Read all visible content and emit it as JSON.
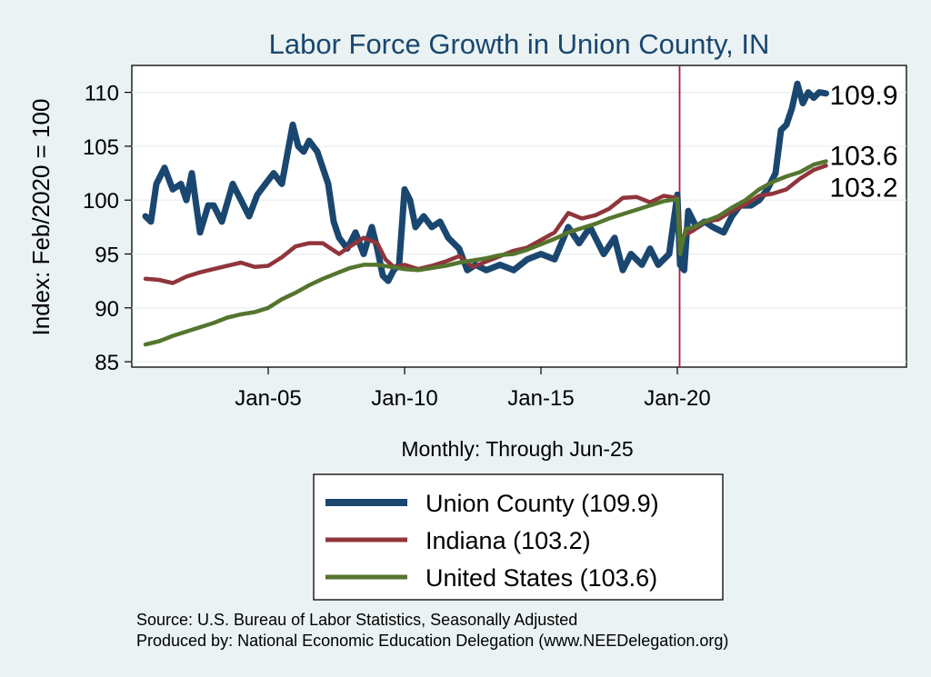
{
  "chart_data": {
    "type": "line",
    "title": "Labor Force Growth in Union  County, IN",
    "ylabel": "Index: Feb/2020 = 100",
    "xlabel": "Monthly: Through Jun-25",
    "ylim": [
      84.5,
      112.5
    ],
    "xlim": [
      2000.0,
      2028.4
    ],
    "yticks": [
      85,
      90,
      95,
      100,
      105,
      110
    ],
    "xticks": [
      {
        "label": "Jan-05",
        "value": 2005
      },
      {
        "label": "Jan-10",
        "value": 2010
      },
      {
        "label": "Jan-15",
        "value": 2015
      },
      {
        "label": "Jan-20",
        "value": 2020
      }
    ],
    "reference_line": 2020.083,
    "grid": "horizontal",
    "legend_position": "below",
    "series": [
      {
        "name": "Union  County",
        "legend": "Union  County (109.9)",
        "end_label": "109.9",
        "color": "#1a476f",
        "x": [
          2000.5,
          2000.7,
          2000.9,
          2001.2,
          2001.5,
          2001.8,
          2002.0,
          2002.2,
          2002.5,
          2002.8,
          2003.0,
          2003.3,
          2003.7,
          2004.0,
          2004.3,
          2004.6,
          2004.9,
          2005.2,
          2005.5,
          2005.9,
          2006.1,
          2006.3,
          2006.5,
          2006.8,
          2007.0,
          2007.2,
          2007.4,
          2007.6,
          2007.9,
          2008.2,
          2008.5,
          2008.8,
          2009.0,
          2009.2,
          2009.4,
          2009.6,
          2009.8,
          2010.0,
          2010.2,
          2010.4,
          2010.7,
          2011.0,
          2011.3,
          2011.6,
          2012.0,
          2012.3,
          2012.6,
          2013.0,
          2013.5,
          2014.0,
          2014.5,
          2015.0,
          2015.5,
          2016.0,
          2016.4,
          2016.8,
          2017.3,
          2017.7,
          2018.0,
          2018.3,
          2018.7,
          2019.0,
          2019.3,
          2019.7,
          2020.0,
          2020.1,
          2020.25,
          2020.4,
          2020.7,
          2021.0,
          2021.3,
          2021.7,
          2022.0,
          2022.3,
          2022.7,
          2023.0,
          2023.3,
          2023.6,
          2023.8,
          2024.0,
          2024.2,
          2024.4,
          2024.6,
          2024.8,
          2025.0,
          2025.2,
          2025.45
        ],
        "values": [
          98.5,
          98.0,
          101.5,
          103.0,
          101.0,
          101.5,
          100.0,
          102.5,
          97.0,
          99.5,
          99.5,
          98.0,
          101.5,
          100.0,
          98.5,
          100.5,
          101.5,
          102.5,
          101.5,
          107.0,
          105.0,
          104.5,
          105.5,
          104.5,
          103.0,
          101.5,
          98.0,
          96.5,
          95.5,
          97.0,
          95.0,
          97.5,
          95.5,
          93.0,
          92.5,
          93.5,
          94.0,
          101.0,
          100.0,
          97.5,
          98.5,
          97.5,
          98.0,
          96.5,
          95.5,
          93.5,
          94.0,
          93.5,
          94.0,
          93.5,
          94.5,
          95.0,
          94.5,
          97.5,
          96.0,
          97.5,
          95.0,
          96.5,
          93.5,
          95.0,
          94.0,
          95.5,
          94.0,
          95.0,
          100.5,
          94.0,
          93.5,
          99.0,
          97.5,
          98.0,
          97.5,
          97.0,
          98.5,
          99.5,
          99.5,
          100.0,
          101.0,
          102.5,
          106.5,
          107.0,
          108.5,
          110.8,
          109.0,
          110.0,
          109.5,
          110.0,
          109.9
        ]
      },
      {
        "name": "Indiana",
        "legend": "Indiana (103.2)",
        "end_label": "103.2",
        "color": "#90353b",
        "x": [
          2000.5,
          2001.0,
          2001.5,
          2002.0,
          2002.5,
          2003.0,
          2003.5,
          2004.0,
          2004.5,
          2005.0,
          2005.5,
          2006.0,
          2006.5,
          2007.0,
          2007.3,
          2007.6,
          2008.0,
          2008.5,
          2009.0,
          2009.3,
          2009.6,
          2010.0,
          2010.5,
          2011.0,
          2011.5,
          2012.0,
          2012.5,
          2013.0,
          2013.5,
          2014.0,
          2014.5,
          2015.0,
          2015.5,
          2016.0,
          2016.5,
          2017.0,
          2017.5,
          2018.0,
          2018.5,
          2019.0,
          2019.5,
          2020.0,
          2020.1,
          2020.3,
          2020.6,
          2021.0,
          2021.5,
          2022.0,
          2022.5,
          2023.0,
          2023.5,
          2024.0,
          2024.5,
          2025.0,
          2025.45
        ],
        "values": [
          92.7,
          92.6,
          92.3,
          92.9,
          93.3,
          93.6,
          93.9,
          94.2,
          93.8,
          93.9,
          94.7,
          95.7,
          96.0,
          96.0,
          95.5,
          95.0,
          95.7,
          96.5,
          96.0,
          94.5,
          93.8,
          94.0,
          93.6,
          93.9,
          94.3,
          94.8,
          93.8,
          94.3,
          94.8,
          95.3,
          95.6,
          96.3,
          97.0,
          98.8,
          98.3,
          98.6,
          99.2,
          100.2,
          100.3,
          99.8,
          100.4,
          100.2,
          96.5,
          96.8,
          97.2,
          98.0,
          98.2,
          99.0,
          99.6,
          100.4,
          100.6,
          101.0,
          102.0,
          102.8,
          103.2
        ]
      },
      {
        "name": "United States",
        "legend": "United States (103.6)",
        "end_label": "103.6",
        "color": "#55752f",
        "x": [
          2000.5,
          2001.0,
          2001.5,
          2002.0,
          2002.5,
          2003.0,
          2003.5,
          2004.0,
          2004.5,
          2005.0,
          2005.5,
          2006.0,
          2006.5,
          2007.0,
          2007.5,
          2008.0,
          2008.5,
          2009.0,
          2009.5,
          2010.0,
          2010.5,
          2011.0,
          2011.5,
          2012.0,
          2012.5,
          2013.0,
          2013.5,
          2014.0,
          2014.5,
          2015.0,
          2015.5,
          2016.0,
          2016.5,
          2017.0,
          2017.5,
          2018.0,
          2018.5,
          2019.0,
          2019.5,
          2020.0,
          2020.1,
          2020.3,
          2020.6,
          2021.0,
          2021.5,
          2022.0,
          2022.5,
          2023.0,
          2023.5,
          2024.0,
          2024.5,
          2025.0,
          2025.45
        ],
        "values": [
          86.6,
          86.9,
          87.4,
          87.8,
          88.2,
          88.6,
          89.1,
          89.4,
          89.6,
          90.0,
          90.8,
          91.4,
          92.1,
          92.7,
          93.2,
          93.7,
          94.0,
          94.0,
          93.8,
          93.6,
          93.5,
          93.7,
          93.9,
          94.2,
          94.4,
          94.6,
          94.9,
          95.0,
          95.4,
          95.9,
          96.4,
          97.0,
          97.4,
          97.8,
          98.3,
          98.7,
          99.1,
          99.5,
          99.9,
          100.1,
          95.0,
          97.3,
          97.5,
          98.0,
          98.5,
          99.3,
          100.0,
          101.0,
          101.7,
          102.2,
          102.6,
          103.3,
          103.6
        ]
      }
    ]
  },
  "source_line1": "Source: U.S. Bureau of Labor Statistics, Seasonally Adjusted",
  "source_line2": "Produced by: National Economic Education Delegation (www.NEEDelegation.org)"
}
